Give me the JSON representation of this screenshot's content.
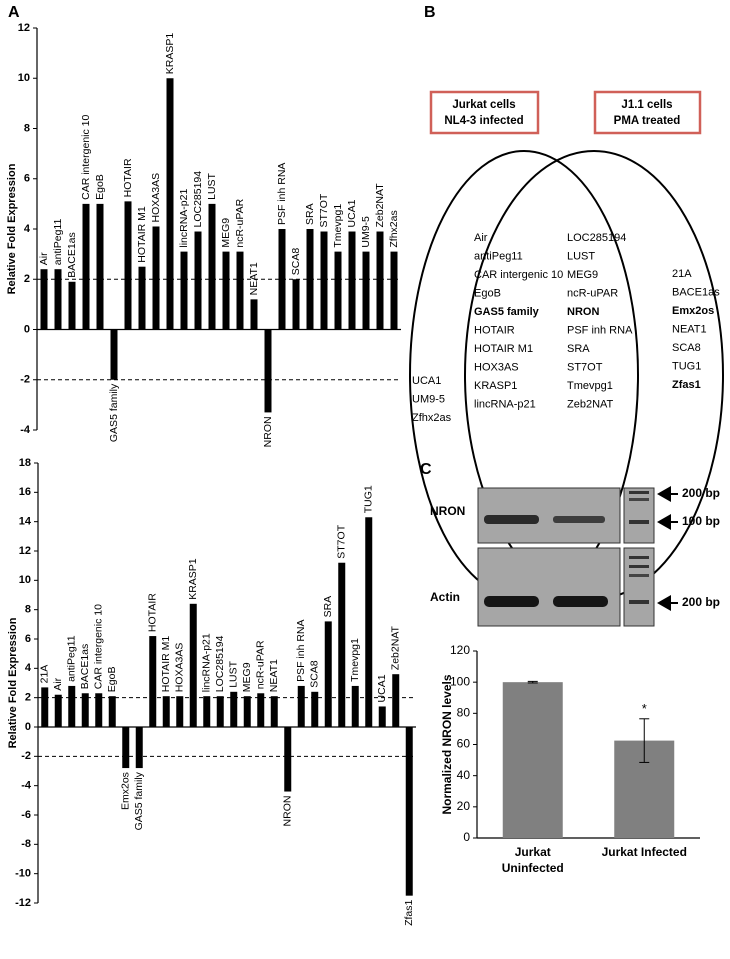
{
  "panel_labels": [
    "A",
    "B",
    "C"
  ],
  "chart_data": [
    {
      "type": "bar",
      "ylabel": "Relative Fold Expression",
      "categories": [
        "Air",
        "antiPeg11",
        "BACE1as",
        "CAR intergenic 10",
        "EgoB",
        "GAS5 family",
        "HOTAIR",
        "HOTAIR M1",
        "HOXA3AS",
        "KRASP1",
        "lincRNA-p21",
        "LOC285194",
        "LUST",
        "MEG9",
        "ncR-uPAR",
        "NEAT1",
        "NRON",
        "PSF inh RNA",
        "SCA8",
        "SRA",
        "ST7OT",
        "Tmevpg1",
        "UCA1",
        "UM9-5",
        "Zeb2NAT",
        "Zfhx2as"
      ],
      "values": [
        2.4,
        2.4,
        1.9,
        5.0,
        5.0,
        -2.0,
        5.1,
        2.5,
        4.1,
        10.0,
        3.1,
        3.9,
        5.0,
        3.1,
        3.1,
        1.2,
        -3.3,
        4.0,
        2.0,
        4.0,
        3.9,
        3.1,
        3.9,
        3.1,
        3.9,
        3.1
      ],
      "color": "#000000",
      "ylim": [
        -4,
        12
      ],
      "yticks": [
        -4,
        -2,
        0,
        2,
        4,
        6,
        8,
        10,
        12
      ],
      "reference_lines": [
        2,
        -2
      ]
    },
    {
      "type": "bar",
      "ylabel": "Relative Fold Expression",
      "categories": [
        "21A",
        "Air",
        "antiPeg11",
        "BACE1as",
        "CAR intergenic 10",
        "EgoB",
        "Emx2os",
        "GAS5 family",
        "HOTAIR",
        "HOTAIR M1",
        "HOXA3AS",
        "KRASP1",
        "lincRNA-p21",
        "LOC285194",
        "LUST",
        "MEG9",
        "ncR-uPAR",
        "NEAT1",
        "NRON",
        "PSF inh RNA",
        "SCA8",
        "SRA",
        "ST7OT",
        "Tmevpg1",
        "TUG1",
        "UCA1",
        "Zeb2NAT",
        "Zfas1"
      ],
      "values": [
        2.7,
        2.2,
        2.8,
        2.3,
        2.3,
        2.1,
        -2.8,
        -2.8,
        6.2,
        2.1,
        2.1,
        8.4,
        2.1,
        2.1,
        2.4,
        2.1,
        2.3,
        2.1,
        -4.4,
        2.8,
        2.4,
        7.2,
        11.2,
        2.8,
        14.3,
        1.4,
        3.6,
        -11.5
      ],
      "color": "#000000",
      "ylim": [
        -12,
        18
      ],
      "yticks": [
        -12,
        -10,
        -8,
        -6,
        -4,
        -2,
        0,
        2,
        4,
        6,
        8,
        10,
        12,
        14,
        16,
        18
      ],
      "reference_lines": [
        2,
        -2
      ]
    },
    {
      "type": "bar",
      "ylabel": "Normalized NRON levels",
      "categories": [
        "Jurkat Uninfected",
        "Jurkat Infected"
      ],
      "values": [
        100,
        62.5
      ],
      "errors": [
        0.5,
        14
      ],
      "annotation": "*",
      "color": "#808080",
      "ylim": [
        0,
        120
      ],
      "yticks": [
        0,
        20,
        40,
        60,
        80,
        100,
        120
      ]
    }
  ],
  "venn": {
    "left_title": [
      "Jurkat cells",
      "NL4-3 infected"
    ],
    "right_title": [
      "J1.1 cells",
      "PMA treated"
    ],
    "left_only": [
      "UCA1",
      "UM9-5",
      "Zfhx2as"
    ],
    "shared": [
      "Air",
      "antiPeg11",
      "CAR intergenic 10",
      "EgoB",
      "GAS5 family",
      "HOTAIR",
      "HOTAIR M1",
      "HOX3AS",
      "KRASP1",
      "lincRNA-p21",
      "LOC285194",
      "LUST",
      "MEG9",
      "ncR-uPAR",
      "NRON",
      "PSF inh RNA",
      "SRA",
      "ST7OT",
      "Tmevpg1",
      "Zeb2NAT"
    ],
    "right_only": [
      "21A",
      "BACE1as",
      "Emx2os",
      "NEAT1",
      "SCA8",
      "TUG1",
      "Zfas1"
    ]
  },
  "gel": {
    "rows": [
      "NRON",
      "Actin"
    ],
    "markers": [
      "200 bp",
      "100 bp",
      "200 bp"
    ]
  }
}
